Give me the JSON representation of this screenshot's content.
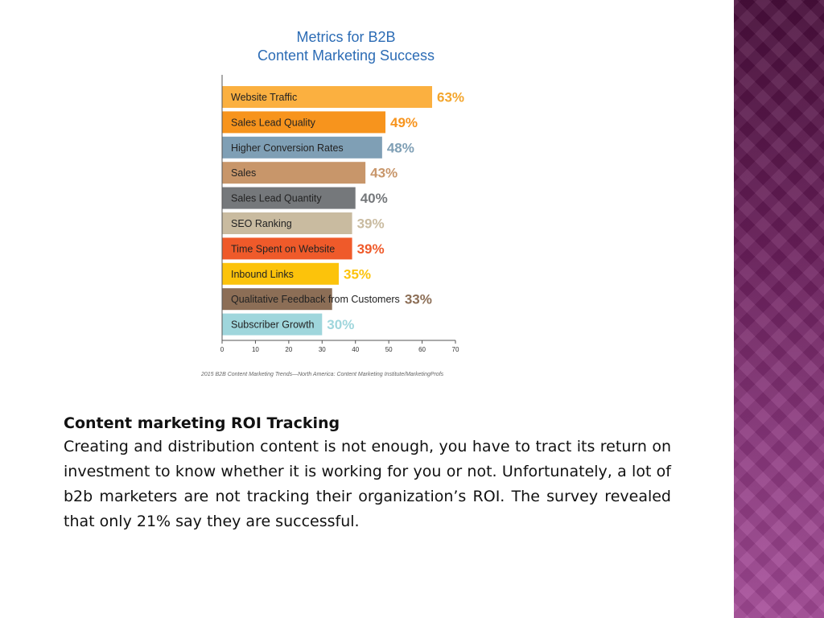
{
  "chart_data": {
    "type": "bar",
    "orientation": "horizontal",
    "title_lines": [
      "Metrics for B2B",
      "Content Marketing Success"
    ],
    "categories": [
      "Website Traffic",
      "Sales Lead Quality",
      "Higher Conversion Rates",
      "Sales",
      "Sales Lead Quantity",
      "SEO Ranking",
      "Time Spent on Website",
      "Inbound Links",
      "Qualitative Feedback from Customers",
      "Subscriber Growth"
    ],
    "values": [
      63,
      49,
      48,
      43,
      40,
      39,
      39,
      35,
      33,
      30
    ],
    "value_labels": [
      "63%",
      "49%",
      "48%",
      "43%",
      "40%",
      "39%",
      "39%",
      "35%",
      "33%",
      "30%"
    ],
    "bar_colors": [
      "#fbb040",
      "#f7941d",
      "#7f9fb5",
      "#c8966a",
      "#75787b",
      "#c9bba0",
      "#ef5a2a",
      "#fcc30b",
      "#8c6e56",
      "#9fd6dc"
    ],
    "label_colors": [
      "#f3a52c",
      "#f7941d",
      "#7f9fb5",
      "#c8966a",
      "#75787b",
      "#c9bba0",
      "#ef5a2a",
      "#fcc30b",
      "#8c6e56",
      "#9fd6dc"
    ],
    "x_ticks": [
      "0",
      "10",
      "20",
      "30",
      "40",
      "50",
      "60",
      "70"
    ],
    "xlim": [
      0,
      70
    ],
    "title_color": "#2c6cb5",
    "source": "2015 B2B Content Marketing Trends—North America: Content Marketing Institute/MarketingProfs"
  },
  "text": {
    "heading": "Content marketing ROI Tracking",
    "body": "Creating and distribution content is not enough, you have to tract its return on investment to know whether it is working for you or not. Unfortunately, a lot of b2b marketers are not tracking their organization’s ROI. The survey revealed that only 21% say they are successful."
  }
}
